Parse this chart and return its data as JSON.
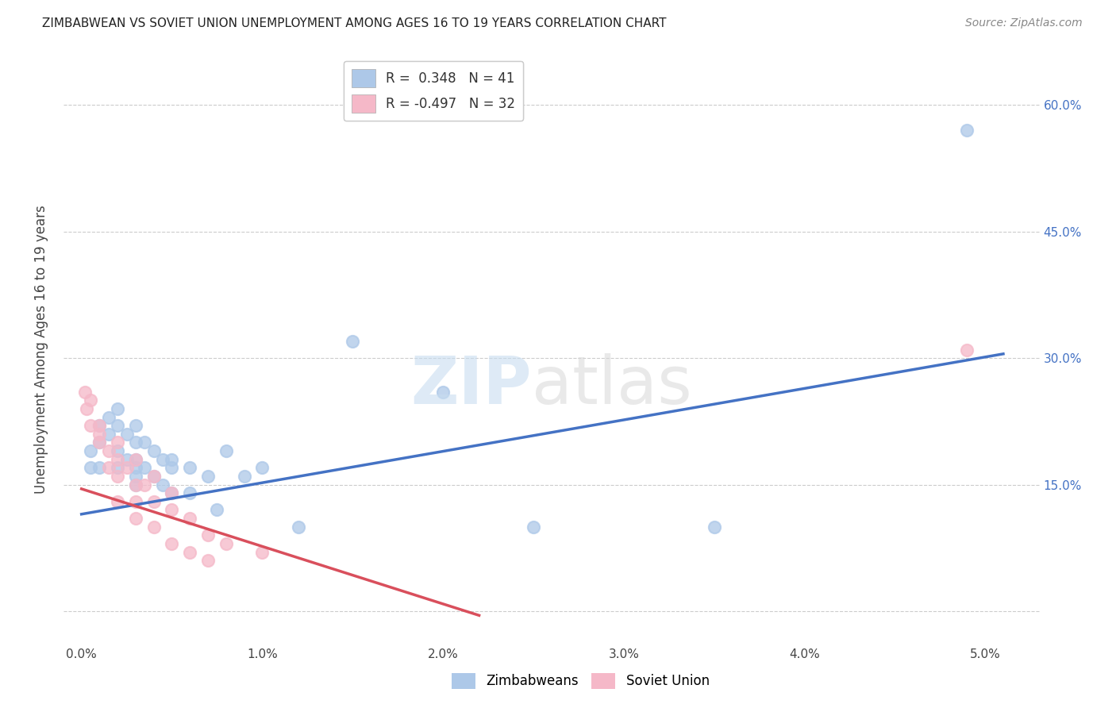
{
  "title": "ZIMBABWEAN VS SOVIET UNION UNEMPLOYMENT AMONG AGES 16 TO 19 YEARS CORRELATION CHART",
  "source": "Source: ZipAtlas.com",
  "ylabel": "Unemployment Among Ages 16 to 19 years",
  "x_ticks": [
    0.0,
    0.01,
    0.02,
    0.03,
    0.04,
    0.05
  ],
  "x_tick_labels": [
    "0.0%",
    "1.0%",
    "2.0%",
    "3.0%",
    "4.0%",
    "5.0%"
  ],
  "y_ticks": [
    0.0,
    0.15,
    0.3,
    0.45,
    0.6
  ],
  "y_tick_labels_right": [
    "",
    "15.0%",
    "30.0%",
    "45.0%",
    "60.0%"
  ],
  "xlim": [
    -0.001,
    0.053
  ],
  "ylim": [
    -0.04,
    0.66
  ],
  "r_zimbabwe": 0.348,
  "n_zimbabwe": 41,
  "r_soviet": -0.497,
  "n_soviet": 32,
  "zimbabwe_color": "#adc8e8",
  "soviet_color": "#f5b8c8",
  "line_zimbabwe_color": "#4472c4",
  "line_soviet_color": "#d94f5c",
  "zimbabwe_x": [
    0.0005,
    0.0005,
    0.001,
    0.001,
    0.001,
    0.0015,
    0.0015,
    0.002,
    0.002,
    0.002,
    0.002,
    0.0025,
    0.0025,
    0.003,
    0.003,
    0.003,
    0.003,
    0.003,
    0.003,
    0.0035,
    0.0035,
    0.004,
    0.004,
    0.0045,
    0.0045,
    0.005,
    0.005,
    0.005,
    0.006,
    0.006,
    0.007,
    0.0075,
    0.008,
    0.009,
    0.01,
    0.012,
    0.015,
    0.02,
    0.025,
    0.035,
    0.049
  ],
  "zimbabwe_y": [
    0.19,
    0.17,
    0.22,
    0.2,
    0.17,
    0.23,
    0.21,
    0.24,
    0.22,
    0.19,
    0.17,
    0.21,
    0.18,
    0.22,
    0.2,
    0.18,
    0.17,
    0.16,
    0.15,
    0.2,
    0.17,
    0.19,
    0.16,
    0.18,
    0.15,
    0.18,
    0.17,
    0.14,
    0.17,
    0.14,
    0.16,
    0.12,
    0.19,
    0.16,
    0.17,
    0.1,
    0.32,
    0.26,
    0.1,
    0.1,
    0.57
  ],
  "soviet_x": [
    0.0002,
    0.0003,
    0.0005,
    0.0005,
    0.001,
    0.001,
    0.001,
    0.0015,
    0.0015,
    0.002,
    0.002,
    0.002,
    0.002,
    0.0025,
    0.003,
    0.003,
    0.003,
    0.003,
    0.0035,
    0.004,
    0.004,
    0.004,
    0.005,
    0.005,
    0.005,
    0.006,
    0.006,
    0.007,
    0.007,
    0.008,
    0.01,
    0.049
  ],
  "soviet_y": [
    0.26,
    0.24,
    0.25,
    0.22,
    0.22,
    0.21,
    0.2,
    0.19,
    0.17,
    0.2,
    0.18,
    0.16,
    0.13,
    0.17,
    0.18,
    0.15,
    0.13,
    0.11,
    0.15,
    0.16,
    0.13,
    0.1,
    0.14,
    0.12,
    0.08,
    0.11,
    0.07,
    0.09,
    0.06,
    0.08,
    0.07,
    0.31
  ],
  "blue_line_x0": 0.0,
  "blue_line_y0": 0.115,
  "blue_line_x1": 0.051,
  "blue_line_y1": 0.305,
  "red_line_x0": 0.0,
  "red_line_y0": 0.145,
  "red_line_x1": 0.022,
  "red_line_y1": -0.005
}
